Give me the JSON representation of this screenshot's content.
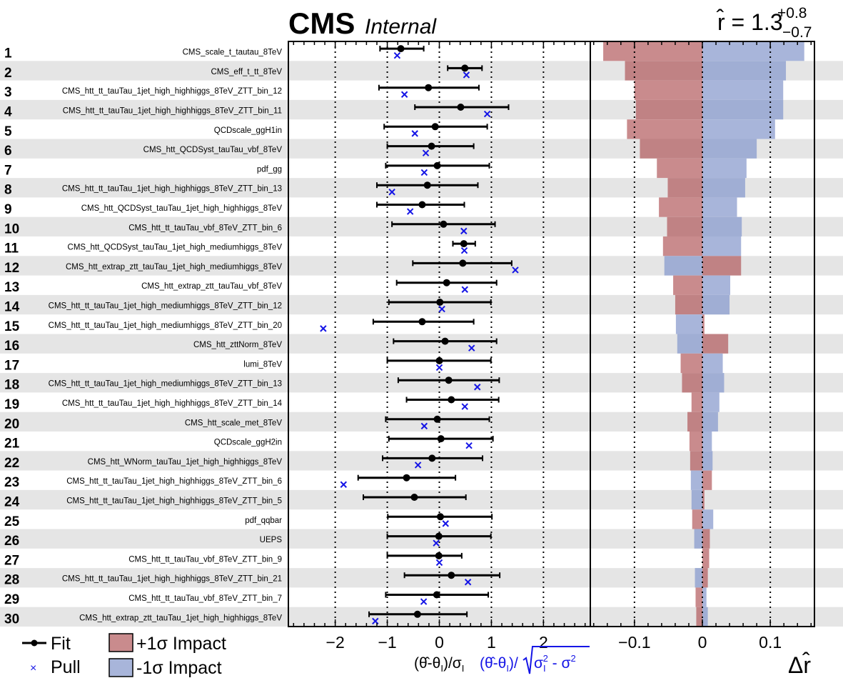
{
  "chart_data": {
    "type": "impact",
    "title": "CMS",
    "subtitle": "Internal",
    "result": {
      "symbol": "r̂",
      "value": "1.3",
      "err_up": "+0.8",
      "err_down": "−0.7",
      "prefix": "r̂ = "
    },
    "pull_axis": {
      "xlim": [
        -2.9,
        2.9
      ],
      "ticks": [
        -2,
        -1,
        0,
        1,
        2
      ],
      "tick_labels": [
        "−2",
        "−1",
        "0",
        "1",
        "2"
      ],
      "gridlines": [
        -2,
        -1,
        0,
        1,
        2
      ],
      "xlabel_black": "(θ̂-θI)/σI",
      "xlabel_blue": "(θ̂-θI)/√(σI² - σ²)"
    },
    "impact_axis": {
      "xlim": [
        -0.165,
        0.165
      ],
      "ticks": [
        -0.1,
        0,
        0.1
      ],
      "tick_labels": [
        "−0.1",
        "0",
        "0.1"
      ],
      "gridlines": [
        -0.1,
        0,
        0.1
      ],
      "xlabel": "Δr̂"
    },
    "legend": {
      "fit": "Fit",
      "pull": "Pull",
      "plus_impact": "+1σ Impact",
      "minus_impact": "-1σ Impact",
      "placement": "bottom-left"
    },
    "colors": {
      "plus_impact": "#c98b8d",
      "minus_impact": "#a8b5da",
      "pull_marker": "#1515e6",
      "fit_marker": "#000000",
      "stripe": "#e5e5e5"
    },
    "parameters": [
      {
        "rank": "1",
        "name": "CMS_scale_t_tautau_8TeV",
        "fit": -0.74,
        "err_lo": -1.14,
        "err_hi": -0.3,
        "pull": -0.81,
        "impact_plus": -0.146,
        "impact_minus": 0.15
      },
      {
        "rank": "2",
        "name": "CMS_eff_t_tt_8TeV",
        "fit": 0.49,
        "err_lo": 0.16,
        "err_hi": 0.82,
        "pull": 0.52,
        "impact_plus": -0.114,
        "impact_minus": 0.123
      },
      {
        "rank": "3",
        "name": "CMS_htt_tt_tauTau_1jet_high_highhiggs_8TeV_ZTT_bin_12",
        "fit": -0.21,
        "err_lo": -1.16,
        "err_hi": 0.76,
        "pull": -0.67,
        "impact_plus": -0.1,
        "impact_minus": 0.119
      },
      {
        "rank": "4",
        "name": "CMS_htt_tt_tauTau_1jet_high_highhiggs_8TeV_ZTT_bin_11",
        "fit": 0.41,
        "err_lo": -0.47,
        "err_hi": 1.33,
        "pull": 0.92,
        "impact_plus": -0.098,
        "impact_minus": 0.119
      },
      {
        "rank": "5",
        "name": "QCDscale_ggH1in",
        "fit": -0.08,
        "err_lo": -1.06,
        "err_hi": 0.92,
        "pull": -0.47,
        "impact_plus": -0.111,
        "impact_minus": 0.107
      },
      {
        "rank": "6",
        "name": "CMS_htt_QCDSyst_tauTau_vbf_8TeV",
        "fit": -0.15,
        "err_lo": -1.0,
        "err_hi": 0.66,
        "pull": -0.26,
        "impact_plus": -0.092,
        "impact_minus": 0.08
      },
      {
        "rank": "7",
        "name": "pdf_gg",
        "fit": -0.04,
        "err_lo": -1.03,
        "err_hi": 0.96,
        "pull": -0.29,
        "impact_plus": -0.067,
        "impact_minus": 0.065
      },
      {
        "rank": "8",
        "name": "CMS_htt_tt_tauTau_1jet_high_highhiggs_8TeV_ZTT_bin_13",
        "fit": -0.23,
        "err_lo": -1.2,
        "err_hi": 0.74,
        "pull": -0.91,
        "impact_plus": -0.051,
        "impact_minus": 0.063
      },
      {
        "rank": "9",
        "name": "CMS_htt_QCDSyst_tauTau_1jet_high_highhiggs_8TeV",
        "fit": -0.33,
        "err_lo": -1.2,
        "err_hi": 0.48,
        "pull": -0.56,
        "impact_plus": -0.064,
        "impact_minus": 0.051
      },
      {
        "rank": "10",
        "name": "CMS_htt_tt_tauTau_vbf_8TeV_ZTT_bin_6",
        "fit": 0.08,
        "err_lo": -0.91,
        "err_hi": 1.07,
        "pull": 0.47,
        "impact_plus": -0.052,
        "impact_minus": 0.058
      },
      {
        "rank": "11",
        "name": "CMS_htt_QCDSyst_tauTau_1jet_high_mediumhiggs_8TeV",
        "fit": 0.47,
        "err_lo": 0.26,
        "err_hi": 0.69,
        "pull": 0.48,
        "impact_plus": -0.058,
        "impact_minus": 0.057
      },
      {
        "rank": "12",
        "name": "CMS_htt_extrap_ztt_tauTau_1jet_high_mediumhiggs_8TeV",
        "fit": 0.45,
        "err_lo": -0.51,
        "err_hi": 1.39,
        "pull": 1.46,
        "impact_plus": 0.057,
        "impact_minus": -0.056
      },
      {
        "rank": "13",
        "name": "CMS_htt_extrap_ztt_tauTau_vbf_8TeV",
        "fit": 0.14,
        "err_lo": -0.82,
        "err_hi": 1.1,
        "pull": 0.49,
        "impact_plus": -0.043,
        "impact_minus": 0.041
      },
      {
        "rank": "14",
        "name": "CMS_htt_tt_tauTau_1jet_high_mediumhiggs_8TeV_ZTT_bin_12",
        "fit": 0.01,
        "err_lo": -0.97,
        "err_hi": 0.99,
        "pull": 0.05,
        "impact_plus": -0.04,
        "impact_minus": 0.04
      },
      {
        "rank": "15",
        "name": "CMS_htt_tt_tauTau_1jet_high_mediumhiggs_8TeV_ZTT_bin_20",
        "fit": -0.33,
        "err_lo": -1.27,
        "err_hi": 0.66,
        "pull": -2.23,
        "impact_plus": 0.003,
        "impact_minus": -0.039
      },
      {
        "rank": "16",
        "name": "CMS_htt_zttNorm_8TeV",
        "fit": 0.11,
        "err_lo": -0.88,
        "err_hi": 1.1,
        "pull": 0.62,
        "impact_plus": 0.038,
        "impact_minus": -0.037
      },
      {
        "rank": "17",
        "name": "lumi_8TeV",
        "fit": 0.0,
        "err_lo": -1.0,
        "err_hi": 0.99,
        "pull": 0.0,
        "impact_plus": -0.032,
        "impact_minus": 0.03
      },
      {
        "rank": "18",
        "name": "CMS_htt_tt_tauTau_1jet_high_mediumhiggs_8TeV_ZTT_bin_13",
        "fit": 0.18,
        "err_lo": -0.79,
        "err_hi": 1.15,
        "pull": 0.73,
        "impact_plus": -0.03,
        "impact_minus": 0.032
      },
      {
        "rank": "19",
        "name": "CMS_htt_tt_tauTau_1jet_high_highhiggs_8TeV_ZTT_bin_14",
        "fit": 0.23,
        "err_lo": -0.63,
        "err_hi": 1.14,
        "pull": 0.49,
        "impact_plus": -0.016,
        "impact_minus": 0.025
      },
      {
        "rank": "20",
        "name": "CMS_htt_scale_met_8TeV",
        "fit": -0.04,
        "err_lo": -1.03,
        "err_hi": 0.96,
        "pull": -0.29,
        "impact_plus": -0.022,
        "impact_minus": 0.023
      },
      {
        "rank": "21",
        "name": "QCDscale_ggH2in",
        "fit": 0.03,
        "err_lo": -0.97,
        "err_hi": 1.03,
        "pull": 0.57,
        "impact_plus": -0.019,
        "impact_minus": 0.014
      },
      {
        "rank": "22",
        "name": "CMS_htt_WNorm_tauTau_1jet_high_highhiggs_8TeV",
        "fit": -0.14,
        "err_lo": -1.09,
        "err_hi": 0.83,
        "pull": -0.41,
        "impact_plus": -0.018,
        "impact_minus": 0.015
      },
      {
        "rank": "23",
        "name": "CMS_htt_tt_tauTau_1jet_high_highhiggs_8TeV_ZTT_bin_6",
        "fit": -0.63,
        "err_lo": -1.56,
        "err_hi": 0.31,
        "pull": -1.84,
        "impact_plus": 0.014,
        "impact_minus": -0.017
      },
      {
        "rank": "24",
        "name": "CMS_htt_tt_tauTau_1jet_high_highhiggs_8TeV_ZTT_bin_5",
        "fit": -0.48,
        "err_lo": -1.46,
        "err_hi": 0.51,
        "pull": null,
        "impact_plus": 0.003,
        "impact_minus": -0.016
      },
      {
        "rank": "25",
        "name": "pdf_qqbar",
        "fit": 0.02,
        "err_lo": -0.99,
        "err_hi": 1.01,
        "pull": 0.12,
        "impact_plus": -0.015,
        "impact_minus": 0.016
      },
      {
        "rank": "26",
        "name": "UEPS",
        "fit": -0.01,
        "err_lo": -1.0,
        "err_hi": 0.99,
        "pull": -0.06,
        "impact_plus": 0.011,
        "impact_minus": -0.012
      },
      {
        "rank": "27",
        "name": "CMS_htt_tt_tauTau_vbf_8TeV_ZTT_bin_9",
        "fit": -0.01,
        "err_lo": -1.0,
        "err_hi": 0.43,
        "pull": 0.0,
        "impact_plus": 0.01,
        "impact_minus": 0.0
      },
      {
        "rank": "28",
        "name": "CMS_htt_tt_tauTau_1jet_high_highhiggs_8TeV_ZTT_bin_21",
        "fit": 0.23,
        "err_lo": -0.67,
        "err_hi": 1.16,
        "pull": 0.55,
        "impact_plus": 0.008,
        "impact_minus": -0.011
      },
      {
        "rank": "29",
        "name": "CMS_htt_tt_tauTau_vbf_8TeV_ZTT_bin_7",
        "fit": -0.05,
        "err_lo": -1.03,
        "err_hi": 0.94,
        "pull": -0.3,
        "impact_plus": -0.01,
        "impact_minus": 0.006
      },
      {
        "rank": "30",
        "name": "CMS_htt_extrap_ztt_tauTau_1jet_high_highhiggs_8TeV",
        "fit": -0.42,
        "err_lo": -1.35,
        "err_hi": 0.53,
        "pull": -1.23,
        "impact_plus": -0.009,
        "impact_minus": 0.008
      }
    ]
  }
}
